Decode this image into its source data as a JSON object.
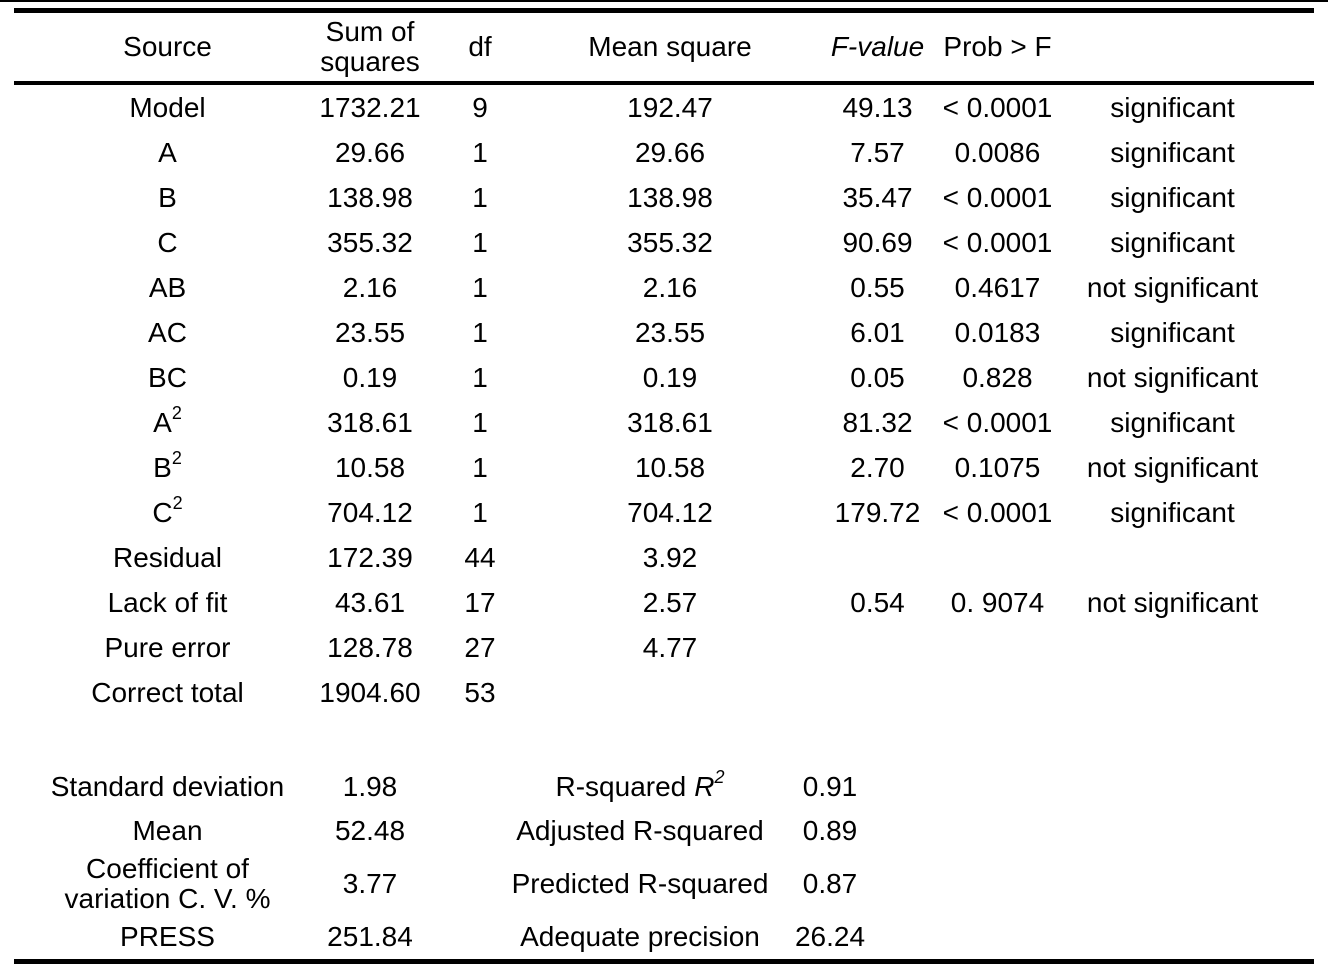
{
  "page": {
    "background": "#ffffff",
    "text_color": "#000000",
    "rule_color": "#000000"
  },
  "anova_table": {
    "headers": {
      "source": "Source",
      "sum_of_squares": "Sum of squares",
      "df": "df",
      "mean_square": "Mean square",
      "f_value": "F-value",
      "prob_f": "Prob > F",
      "significance": ""
    },
    "rows": [
      {
        "source": "Model",
        "ss": "1732.21",
        "df": "9",
        "ms": "192.47",
        "f": "49.13",
        "p": "< 0.0001",
        "sig": "significant"
      },
      {
        "source": "A",
        "ss": "29.66",
        "df": "1",
        "ms": "29.66",
        "f": "7.57",
        "p": "0.0086",
        "sig": "significant"
      },
      {
        "source": "B",
        "ss": "138.98",
        "df": "1",
        "ms": "138.98",
        "f": "35.47",
        "p": "< 0.0001",
        "sig": "significant"
      },
      {
        "source": "C",
        "ss": "355.32",
        "df": "1",
        "ms": "355.32",
        "f": "90.69",
        "p": "< 0.0001",
        "sig": "significant"
      },
      {
        "source": "AB",
        "ss": "2.16",
        "df": "1",
        "ms": "2.16",
        "f": "0.55",
        "p": "0.4617",
        "sig": "not significant"
      },
      {
        "source": "AC",
        "ss": "23.55",
        "df": "1",
        "ms": "23.55",
        "f": "6.01",
        "p": "0.0183",
        "sig": "significant"
      },
      {
        "source": "BC",
        "ss": "0.19",
        "df": "1",
        "ms": "0.19",
        "f": "0.05",
        "p": "0.828",
        "sig": "not significant"
      },
      {
        "source": "A",
        "source_sup": "2",
        "ss": "318.61",
        "df": "1",
        "ms": "318.61",
        "f": "81.32",
        "p": "< 0.0001",
        "sig": "significant"
      },
      {
        "source": "B",
        "source_sup": "2",
        "ss": "10.58",
        "df": "1",
        "ms": "10.58",
        "f": "2.70",
        "p": "0.1075",
        "sig": "not significant"
      },
      {
        "source": "C",
        "source_sup": "2",
        "ss": "704.12",
        "df": "1",
        "ms": "704.12",
        "f": "179.72",
        "p": "< 0.0001",
        "sig": "significant"
      },
      {
        "source": "Residual",
        "ss": "172.39",
        "df": "44",
        "ms": "3.92",
        "f": "",
        "p": "",
        "sig": ""
      },
      {
        "source": "Lack of fit",
        "ss": "43.61",
        "df": "17",
        "ms": "2.57",
        "f": "0.54",
        "p": "0. 9074",
        "sig": "not significant"
      },
      {
        "source": "Pure error",
        "ss": "128.78",
        "df": "27",
        "ms": "4.77",
        "f": "",
        "p": "",
        "sig": ""
      },
      {
        "source": "Correct total",
        "ss": "1904.60",
        "df": "53",
        "ms": "",
        "f": "",
        "p": "",
        "sig": ""
      }
    ],
    "summary_rows": [
      {
        "label": "Standard deviation",
        "value": "1.98",
        "label2": "R-squared",
        "label2_italic": "R",
        "label2_sup": "2",
        "value2": "0.91"
      },
      {
        "label": "Mean",
        "value": "52.48",
        "label2": "Adjusted R-squared",
        "value2": "0.89"
      },
      {
        "label": "Coefficient of variation C. V. %",
        "value": "3.77",
        "label2": "Predicted R-squared",
        "value2": "0.87"
      },
      {
        "label": "PRESS",
        "value": "251.84",
        "label2": "Adequate precision",
        "value2": "26.24"
      }
    ]
  }
}
